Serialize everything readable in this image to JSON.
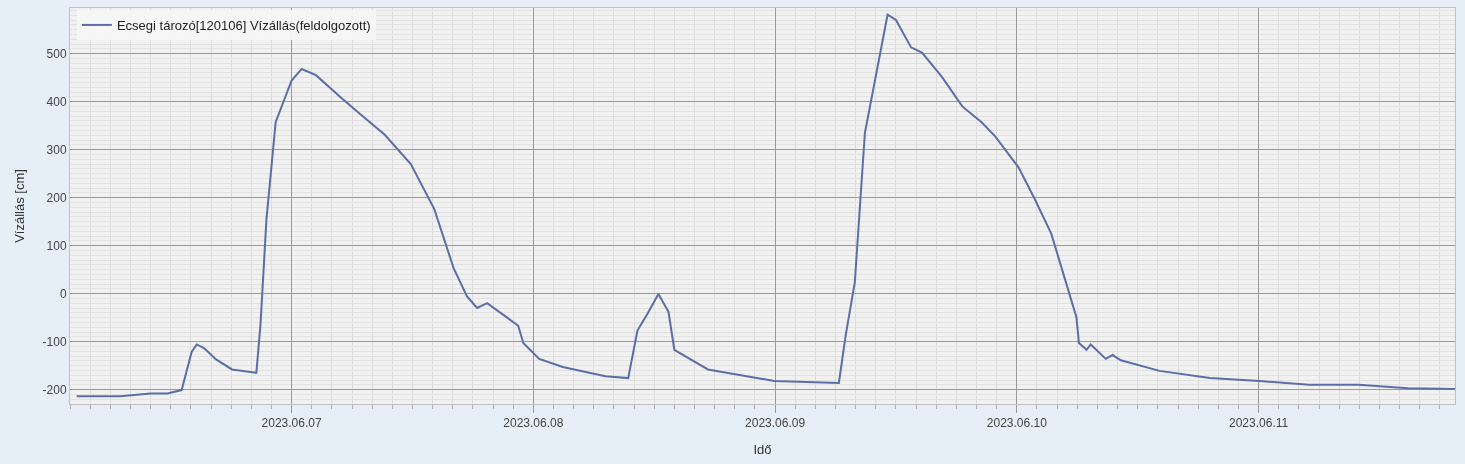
{
  "chart_data": {
    "type": "line",
    "xlabel": "Idő",
    "ylabel": "Vízállás [cm]",
    "x": [
      "2023-06-06T02:40",
      "2023-06-06T07:00",
      "2023-06-06T10:00",
      "2023-06-06T11:40",
      "2023-06-06T13:05",
      "2023-06-06T14:05",
      "2023-06-06T14:35",
      "2023-06-06T15:20",
      "2023-06-06T16:30",
      "2023-06-06T18:05",
      "2023-06-06T20:30",
      "2023-06-06T20:55",
      "2023-06-06T21:30",
      "2023-06-06T22:25",
      "2023-06-07T00:00",
      "2023-06-07T01:00",
      "2023-06-07T02:25",
      "2023-06-07T04:55",
      "2023-06-07T06:55",
      "2023-06-07T09:15",
      "2023-06-07T11:50",
      "2023-06-07T14:10",
      "2023-06-07T16:05",
      "2023-06-07T17:25",
      "2023-06-07T18:25",
      "2023-06-07T19:25",
      "2023-06-07T21:20",
      "2023-06-07T22:30",
      "2023-06-07T23:00",
      "2023-06-08T00:35",
      "2023-06-08T02:55",
      "2023-06-08T07:10",
      "2023-06-08T09:25",
      "2023-06-08T10:20",
      "2023-06-08T11:20",
      "2023-06-08T12:25",
      "2023-06-08T13:25",
      "2023-06-08T14:00",
      "2023-06-08T17:20",
      "2023-06-08T23:55",
      "2023-06-09T06:20",
      "2023-06-09T07:00",
      "2023-06-09T07:55",
      "2023-06-09T08:55",
      "2023-06-09T11:10",
      "2023-06-09T12:00",
      "2023-06-09T13:30",
      "2023-06-09T14:35",
      "2023-06-09T16:35",
      "2023-06-09T18:35",
      "2023-06-09T20:30",
      "2023-06-09T21:50",
      "2023-06-10T00:10",
      "2023-06-10T01:45",
      "2023-06-10T03:25",
      "2023-06-10T04:40",
      "2023-06-10T05:55",
      "2023-06-10T06:10",
      "2023-06-10T06:55",
      "2023-06-10T07:20",
      "2023-06-10T08:50",
      "2023-06-10T09:30",
      "2023-06-10T10:20",
      "2023-06-10T14:10",
      "2023-06-10T19:10",
      "2023-06-11T00:05",
      "2023-06-11T05:00",
      "2023-06-11T09:55",
      "2023-06-11T14:50",
      "2023-06-11T19:30"
    ],
    "series": [
      {
        "name": "Ecsegi tározó[120106] Vízállás(feldolgozott)",
        "color": "#5b6fa6",
        "values": [
          -214,
          -214,
          -208,
          -208,
          -201,
          -121,
          -106,
          -114,
          -137,
          -158,
          -165,
          -63,
          154,
          357,
          444,
          468,
          455,
          408,
          372,
          331,
          270,
          176,
          53,
          -6,
          -30,
          -20,
          -49,
          -67,
          -103,
          -136,
          -153,
          -172,
          -176,
          -77,
          -42,
          -1,
          -38,
          -117,
          -158,
          -182,
          -186,
          -88,
          24,
          335,
          581,
          570,
          513,
          502,
          451,
          390,
          357,
          328,
          263,
          198,
          125,
          38,
          -49,
          -103,
          -117,
          -106,
          -136,
          -128,
          -139,
          -161,
          -176,
          -182,
          -190,
          -190,
          -197,
          -199
        ]
      }
    ],
    "xlim": [
      "2023-06-06T02:00",
      "2023-06-11T19:30"
    ],
    "xticks": [
      {
        "value": "2023-06-07",
        "label": "2023.06.07"
      },
      {
        "value": "2023-06-08",
        "label": "2023.06.08"
      },
      {
        "value": "2023-06-09",
        "label": "2023.06.09"
      },
      {
        "value": "2023-06-10",
        "label": "2023.06.10"
      },
      {
        "value": "2023-06-11",
        "label": "2023.06.11"
      }
    ],
    "ylim": [
      -230,
      595
    ],
    "yticks": [
      -200,
      -100,
      0,
      100,
      200,
      300,
      400,
      500
    ],
    "grid": true,
    "legend": "top left",
    "marker": "none",
    "line_style": "solid"
  }
}
